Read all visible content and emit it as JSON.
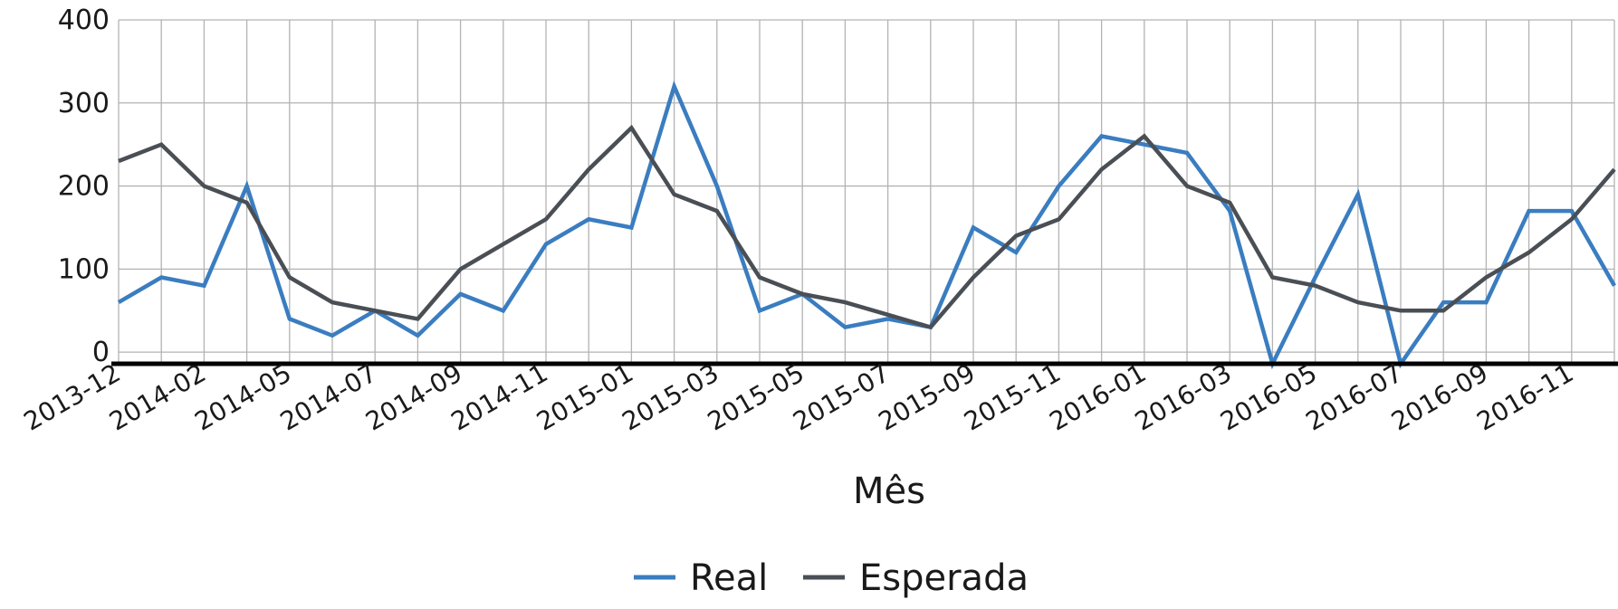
{
  "chart_data": {
    "type": "line",
    "title": "",
    "xlabel": "Mês",
    "ylabel": "",
    "ylim": [
      -14,
      400
    ],
    "yticks": [
      0,
      100,
      200,
      300,
      400
    ],
    "grid": true,
    "legend_position": "bottom-center",
    "x": [
      "2013-12",
      "2014-01",
      "2014-02",
      "2014-03",
      "2014-05",
      "2014-06",
      "2014-07",
      "2014-08",
      "2014-09",
      "2014-10",
      "2014-11",
      "2014-12",
      "2015-01",
      "2015-02",
      "2015-03",
      "2015-04",
      "2015-05",
      "2015-06",
      "2015-07",
      "2015-08",
      "2015-09",
      "2015-10",
      "2015-11",
      "2015-12",
      "2016-01",
      "2016-02",
      "2016-03",
      "2016-04",
      "2016-05",
      "2016-06",
      "2016-07",
      "2016-08",
      "2016-09",
      "2016-10",
      "2016-11",
      "2016-12"
    ],
    "x_tick_labels": [
      "2013-12",
      "2014-02",
      "2014-05",
      "2014-07",
      "2014-09",
      "2014-11",
      "2015-01",
      "2015-03",
      "2015-05",
      "2015-07",
      "2015-09",
      "2015-11",
      "2016-01",
      "2016-03",
      "2016-05",
      "2016-07",
      "2016-09",
      "2016-11"
    ],
    "series": [
      {
        "name": "Real",
        "color": "#3a7dc0",
        "values": [
          60,
          90,
          80,
          200,
          40,
          20,
          50,
          20,
          70,
          50,
          130,
          160,
          150,
          320,
          200,
          50,
          70,
          30,
          40,
          30,
          150,
          120,
          200,
          260,
          250,
          240,
          170,
          -14,
          90,
          190,
          -14,
          60,
          60,
          170,
          170,
          80
        ]
      },
      {
        "name": "Esperada",
        "color": "#4a4f55",
        "values": [
          230,
          250,
          200,
          180,
          90,
          60,
          50,
          40,
          100,
          130,
          160,
          220,
          270,
          190,
          170,
          90,
          70,
          60,
          45,
          30,
          90,
          140,
          160,
          220,
          260,
          200,
          180,
          90,
          80,
          60,
          50,
          50,
          90,
          120,
          160,
          220
        ]
      }
    ]
  }
}
